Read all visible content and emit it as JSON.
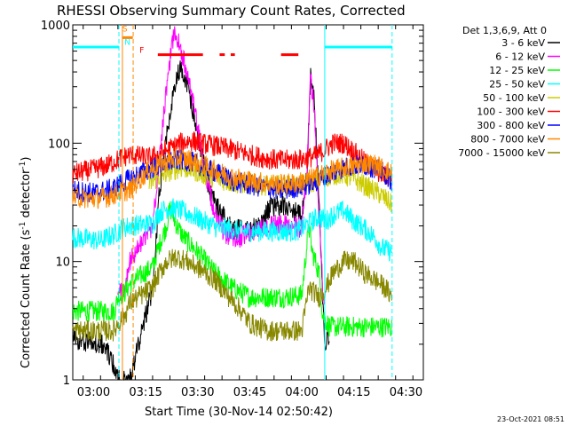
{
  "chart_data": {
    "type": "line",
    "title": "RHESSI Observing Summary Count Rates, Corrected",
    "xlabel": "Start Time (30-Nov-14 02:50:42)",
    "ylabel_parts": {
      "main": "Corrected Count Rate (s",
      "sup1": "-1",
      "mid": " detector",
      "sup2": "-1",
      "end": ")"
    },
    "y_scale": "log",
    "ylim": [
      1,
      1000
    ],
    "y_ticks": [
      {
        "value": 1,
        "label": "1"
      },
      {
        "value": 10,
        "label": "10"
      },
      {
        "value": 100,
        "label": "100"
      },
      {
        "value": 1000,
        "label": "1000"
      }
    ],
    "xlim_min": [
      174,
      275
    ],
    "x_ticks": [
      {
        "value": 180,
        "label": "03:00"
      },
      {
        "value": 195,
        "label": "03:15"
      },
      {
        "value": 210,
        "label": "03:30"
      },
      {
        "value": 225,
        "label": "03:45"
      },
      {
        "value": 240,
        "label": "04:00"
      },
      {
        "value": 255,
        "label": "04:15"
      },
      {
        "value": 270,
        "label": "04:30"
      }
    ],
    "grid": false,
    "legend_position": "right",
    "legend_header": "Det 1,3,6,9, Att 0",
    "footer": "23-Oct-2021 08:51",
    "series": [
      {
        "name": "3 - 6 keV",
        "color": "#000000",
        "points": [
          [
            174,
            2.2
          ],
          [
            183,
            2.0
          ],
          [
            186,
            1.3
          ],
          [
            187,
            1.0
          ],
          [
            189,
            1.0
          ],
          [
            190.5,
            1.0
          ],
          [
            197,
            6
          ],
          [
            199,
            40
          ],
          [
            202,
            180
          ],
          [
            204,
            380
          ],
          [
            205,
            420
          ],
          [
            207,
            320
          ],
          [
            210,
            120
          ],
          [
            213,
            45
          ],
          [
            215,
            30
          ],
          [
            220,
            19
          ],
          [
            225,
            18
          ],
          [
            228,
            21
          ],
          [
            230,
            27
          ],
          [
            233,
            30
          ],
          [
            236,
            28
          ],
          [
            239,
            25
          ],
          [
            240,
            24
          ],
          [
            241.5,
            60
          ],
          [
            242.5,
            380
          ],
          [
            243.5,
            250
          ],
          [
            245,
            30
          ],
          [
            246,
            5
          ],
          [
            246.5,
            2.2
          ],
          [
            247.5,
            2.2
          ],
          [
            248,
            1.8
          ]
        ]
      },
      {
        "name": "6 - 12 keV",
        "color": "#ff00ff",
        "points": [
          [
            187,
            5
          ],
          [
            189,
            6
          ],
          [
            190.5,
            10
          ],
          [
            197,
            20
          ],
          [
            199,
            80
          ],
          [
            201,
            300
          ],
          [
            203,
            800
          ],
          [
            204,
            780
          ],
          [
            206,
            500
          ],
          [
            209,
            200
          ],
          [
            212,
            60
          ],
          [
            215,
            25
          ],
          [
            218,
            17
          ],
          [
            222,
            16
          ],
          [
            226,
            18
          ],
          [
            230,
            20
          ],
          [
            234,
            21
          ],
          [
            238,
            20
          ],
          [
            240,
            19
          ],
          [
            241.5,
            60
          ],
          [
            242.5,
            360
          ],
          [
            243.5,
            200
          ],
          [
            245,
            25
          ],
          [
            246,
            6
          ],
          [
            246.5,
            4
          ]
        ]
      },
      {
        "name": "12 - 25 keV",
        "color": "#00ff00",
        "points": [
          [
            174,
            3.8
          ],
          [
            186,
            3.8
          ],
          [
            187,
            5
          ],
          [
            189,
            5.5
          ],
          [
            190.5,
            6.5
          ],
          [
            197,
            9
          ],
          [
            199,
            14
          ],
          [
            201,
            20
          ],
          [
            202,
            28
          ],
          [
            204,
            20
          ],
          [
            206,
            16
          ],
          [
            210,
            12
          ],
          [
            215,
            8
          ],
          [
            220,
            6
          ],
          [
            225,
            5
          ],
          [
            230,
            5
          ],
          [
            235,
            5
          ],
          [
            240,
            5.2
          ],
          [
            242,
            20
          ],
          [
            243,
            12
          ],
          [
            245,
            8
          ],
          [
            246,
            3.5
          ],
          [
            248,
            2.8
          ],
          [
            251,
            2.8
          ],
          [
            254,
            2.8
          ],
          [
            262,
            2.8
          ],
          [
            266,
            2.8
          ]
        ]
      },
      {
        "name": "25 - 50 keV",
        "color": "#00ffff",
        "points": [
          [
            174,
            16
          ],
          [
            182,
            15
          ],
          [
            186,
            17
          ],
          [
            188,
            19
          ],
          [
            190.5,
            20
          ],
          [
            197,
            21
          ],
          [
            199,
            26
          ],
          [
            201,
            28
          ],
          [
            203,
            28
          ],
          [
            205,
            27
          ],
          [
            209,
            24
          ],
          [
            213,
            21
          ],
          [
            216,
            19
          ],
          [
            219,
            19
          ],
          [
            222,
            18
          ],
          [
            226,
            18
          ],
          [
            230,
            18
          ],
          [
            234,
            18
          ],
          [
            238,
            18
          ],
          [
            240,
            19
          ],
          [
            243,
            22
          ],
          [
            245,
            24
          ],
          [
            247,
            22
          ],
          [
            249,
            25
          ],
          [
            252,
            27
          ],
          [
            255,
            22
          ],
          [
            258,
            19
          ],
          [
            261,
            16
          ],
          [
            263,
            13
          ],
          [
            266,
            12
          ]
        ]
      },
      {
        "name": "50 - 100 keV",
        "color": "#cccc00",
        "points": [
          [
            196,
            45
          ],
          [
            199,
            52
          ],
          [
            202,
            58
          ],
          [
            205,
            62
          ],
          [
            208,
            60
          ],
          [
            212,
            54
          ],
          [
            216,
            50
          ],
          [
            220,
            46
          ],
          [
            225,
            45
          ],
          [
            230,
            44
          ],
          [
            235,
            44
          ],
          [
            240,
            44
          ],
          [
            244,
            48
          ],
          [
            247,
            52
          ],
          [
            251,
            55
          ],
          [
            255,
            50
          ],
          [
            258,
            44
          ],
          [
            262,
            38
          ],
          [
            265,
            32
          ],
          [
            266,
            30
          ]
        ]
      },
      {
        "name": "100 - 300 keV",
        "color": "#ff0000",
        "points": [
          [
            174,
            55
          ],
          [
            180,
            60
          ],
          [
            184,
            65
          ],
          [
            186,
            70
          ],
          [
            188,
            75
          ],
          [
            190.5,
            80
          ],
          [
            196,
            75
          ],
          [
            199,
            80
          ],
          [
            202,
            90
          ],
          [
            205,
            100
          ],
          [
            208,
            105
          ],
          [
            211,
            100
          ],
          [
            215,
            95
          ],
          [
            220,
            88
          ],
          [
            225,
            80
          ],
          [
            229,
            75
          ],
          [
            233,
            72
          ],
          [
            237,
            72
          ],
          [
            240,
            73
          ],
          [
            244,
            78
          ],
          [
            247,
            90
          ],
          [
            249,
            100
          ],
          [
            252,
            100
          ],
          [
            255,
            85
          ],
          [
            258,
            70
          ],
          [
            261,
            60
          ],
          [
            263,
            55
          ],
          [
            266,
            50
          ]
        ]
      },
      {
        "name": "300 - 800 keV",
        "color": "#0000ff",
        "points": [
          [
            174,
            40
          ],
          [
            180,
            38
          ],
          [
            184,
            40
          ],
          [
            186,
            42
          ],
          [
            188,
            46
          ],
          [
            190.5,
            50
          ],
          [
            196,
            60
          ],
          [
            199,
            65
          ],
          [
            202,
            70
          ],
          [
            205,
            72
          ],
          [
            208,
            70
          ],
          [
            212,
            62
          ],
          [
            216,
            55
          ],
          [
            220,
            48
          ],
          [
            225,
            44
          ],
          [
            230,
            42
          ],
          [
            234,
            40
          ],
          [
            238,
            42
          ],
          [
            240,
            43
          ],
          [
            244,
            47
          ],
          [
            248,
            55
          ],
          [
            252,
            62
          ],
          [
            255,
            65
          ],
          [
            258,
            65
          ],
          [
            261,
            62
          ],
          [
            264,
            55
          ],
          [
            266,
            48
          ]
        ]
      },
      {
        "name": "800 - 7000 keV",
        "color": "#ff8800",
        "points": [
          [
            174,
            35
          ],
          [
            180,
            34
          ],
          [
            184,
            35
          ],
          [
            186,
            37
          ],
          [
            188,
            39
          ],
          [
            190.5,
            40
          ],
          [
            196,
            60
          ],
          [
            199,
            66
          ],
          [
            202,
            72
          ],
          [
            205,
            75
          ],
          [
            208,
            72
          ],
          [
            212,
            64
          ],
          [
            216,
            57
          ],
          [
            220,
            52
          ],
          [
            225,
            48
          ],
          [
            230,
            46
          ],
          [
            234,
            45
          ],
          [
            238,
            46
          ],
          [
            240,
            47
          ],
          [
            244,
            52
          ],
          [
            248,
            58
          ],
          [
            252,
            62
          ],
          [
            255,
            64
          ],
          [
            258,
            68
          ],
          [
            261,
            66
          ],
          [
            264,
            60
          ],
          [
            266,
            55
          ]
        ]
      },
      {
        "name": "7000 - 15000 keV",
        "color": "#888800",
        "points": [
          [
            174,
            2.6
          ],
          [
            182,
            2.6
          ],
          [
            186,
            2.6
          ],
          [
            187,
            3
          ],
          [
            189,
            3.5
          ],
          [
            190.5,
            4.5
          ],
          [
            197,
            6
          ],
          [
            199,
            8
          ],
          [
            201,
            10
          ],
          [
            204,
            11
          ],
          [
            207,
            10
          ],
          [
            211,
            8.5
          ],
          [
            215,
            7
          ],
          [
            219,
            5
          ],
          [
            222,
            4
          ],
          [
            225,
            3
          ],
          [
            230,
            2.6
          ],
          [
            235,
            2.6
          ],
          [
            240,
            2.6
          ],
          [
            242,
            6
          ],
          [
            245,
            5
          ],
          [
            247,
            6
          ],
          [
            249,
            8
          ],
          [
            252,
            10
          ],
          [
            255,
            10
          ],
          [
            258,
            8
          ],
          [
            261,
            7
          ],
          [
            264,
            6
          ],
          [
            266,
            5
          ]
        ]
      }
    ],
    "annotations": {
      "flag_bars": [
        {
          "color": "#00ffff",
          "y": 650,
          "ranges": [
            [
              174,
              187.3
            ],
            [
              246.6,
              266
            ]
          ]
        },
        {
          "color": "#ff8800",
          "y": 780,
          "ranges": [
            [
              188.2,
              191.3
            ]
          ]
        },
        {
          "color": "#ff0000",
          "y": 560,
          "ranges": [
            [
              198.5,
              211.5
            ],
            [
              216.3,
              217.8
            ],
            [
              219.5,
              220.7
            ],
            [
              234,
              239
            ]
          ]
        }
      ],
      "vlines": [
        {
          "x": 187.3,
          "color": "#00ffff",
          "style": "dashed"
        },
        {
          "x": 246.6,
          "color": "#00ffff",
          "style": "solid"
        },
        {
          "x": 266,
          "color": "#00ffff",
          "style": "dashed"
        },
        {
          "x": 188.3,
          "color": "#ff8800",
          "style": "solid"
        },
        {
          "x": 191.4,
          "color": "#ff8800",
          "style": "dashed"
        }
      ],
      "labels": [
        {
          "text": "S",
          "x": 188.3,
          "y": 880,
          "color": "#ff8800"
        },
        {
          "text": "N",
          "x": 188.9,
          "y": 680,
          "color": "#00ffff"
        },
        {
          "text": "F",
          "x": 193.2,
          "y": 580,
          "color": "#ff0000"
        }
      ]
    }
  }
}
